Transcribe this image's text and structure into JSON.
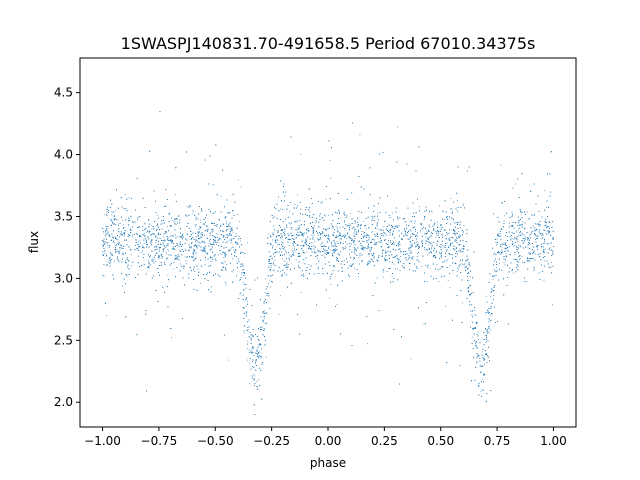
{
  "chart_data": {
    "type": "scatter",
    "title": "1SWASPJ140831.70-491658.5 Period 67010.34375s",
    "xlabel": "phase",
    "ylabel": "flux",
    "xlim": [
      -1.1,
      1.1
    ],
    "ylim": [
      1.8,
      4.78
    ],
    "xticks": [
      -1.0,
      -0.75,
      -0.5,
      -0.25,
      0.0,
      0.25,
      0.5,
      0.75,
      1.0
    ],
    "xtick_labels": [
      "−1.00",
      "−0.75",
      "−0.50",
      "−0.25",
      "0.00",
      "0.25",
      "0.50",
      "0.75",
      "1.00"
    ],
    "yticks": [
      2.0,
      2.5,
      3.0,
      3.5,
      4.0,
      4.5
    ],
    "ytick_labels": [
      "2.0",
      "2.5",
      "3.0",
      "3.5",
      "4.0",
      "4.5"
    ],
    "grid": false,
    "marker_color": "#1f77b4",
    "point_count": 9000,
    "phase_range": [
      -1.0,
      1.0
    ],
    "baseline_flux": 3.3,
    "scatter_sigma": 0.14,
    "eclipses": [
      {
        "phase": -0.32,
        "min_flux": 2.3
      },
      {
        "phase": 0.68,
        "min_flux": 2.3
      }
    ],
    "eclipse_half_width": 0.09
  }
}
